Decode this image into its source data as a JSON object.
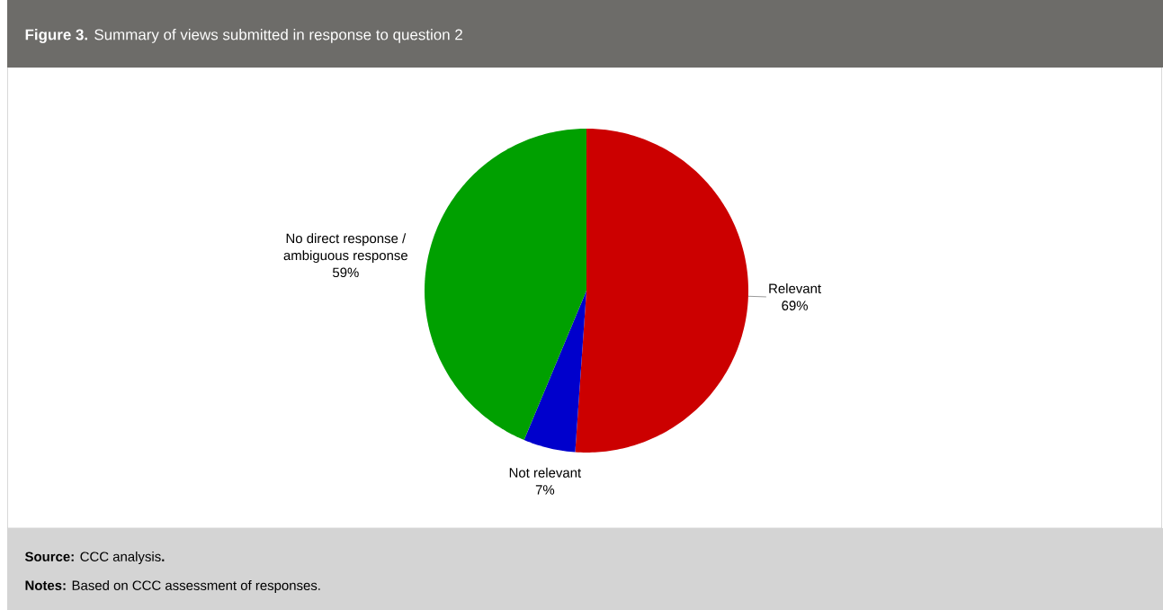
{
  "chart_data": {
    "type": "pie",
    "title": "**Figure 3.** Summary of views submitted in response to question 2",
    "categories": [
      "Relevant",
      "Not relevant",
      "No direct response / ambiguous response"
    ],
    "values": [
      69,
      7,
      59
    ],
    "value_labels": [
      "69%",
      "7%",
      "59%"
    ],
    "colors": [
      "#cc0000",
      "#0000cc",
      "#00a000"
    ],
    "annotations": [
      "**Source:** CCC analysis**.**",
      "**Notes:** Based on CCC assessment of responses."
    ]
  }
}
